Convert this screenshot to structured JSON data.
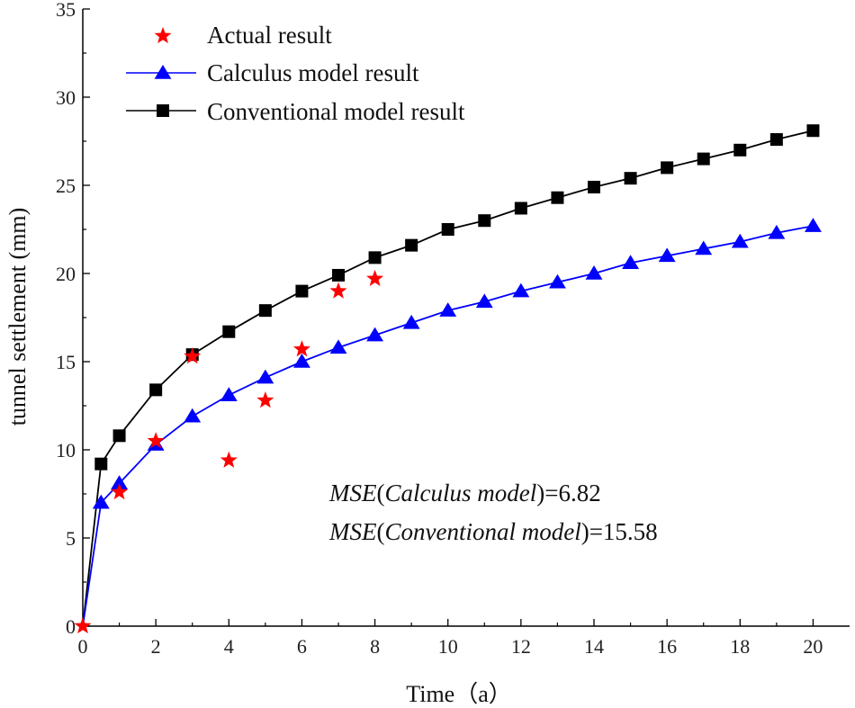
{
  "chart_data": {
    "type": "scatter",
    "xlabel": "Time（a）",
    "ylabel": "tunnel settlement (mm)",
    "xlim": [
      0,
      21
    ],
    "ylim": [
      0,
      35
    ],
    "xticks": [
      0,
      2,
      4,
      6,
      8,
      10,
      12,
      14,
      16,
      18,
      20
    ],
    "yticks": [
      0,
      5,
      10,
      15,
      20,
      25,
      30,
      35
    ],
    "xtick_labels": [
      "0",
      "2",
      "4",
      "6",
      "8",
      "10",
      "12",
      "14",
      "16",
      "18",
      "20"
    ],
    "ytick_labels": [
      "0",
      "5",
      "10",
      "15",
      "20",
      "25",
      "30",
      "35"
    ],
    "grid": false,
    "legend_position": "top-left",
    "series": [
      {
        "name": "Actual result",
        "kind": "scatter",
        "marker": "star",
        "color": "#ff0000",
        "x": [
          0,
          1,
          2,
          3,
          4,
          5,
          6,
          7,
          8
        ],
        "y": [
          0,
          7.6,
          10.5,
          15.3,
          9.4,
          12.8,
          15.7,
          19.0,
          19.7
        ]
      },
      {
        "name": "Calculus model result",
        "kind": "line",
        "marker": "triangle",
        "color": "#0000ff",
        "x": [
          0,
          0.5,
          1,
          2,
          3,
          4,
          5,
          6,
          7,
          8,
          9,
          10,
          11,
          12,
          13,
          14,
          15,
          16,
          17,
          18,
          19,
          20
        ],
        "y": [
          0,
          7.0,
          8.1,
          10.3,
          11.9,
          13.1,
          14.1,
          15.0,
          15.8,
          16.5,
          17.2,
          17.9,
          18.4,
          19.0,
          19.5,
          20.0,
          20.6,
          21.0,
          21.4,
          21.8,
          22.3,
          22.7
        ]
      },
      {
        "name": "Conventional model result",
        "kind": "line",
        "marker": "square",
        "color": "#000000",
        "x": [
          0,
          0.5,
          1,
          2,
          3,
          4,
          5,
          6,
          7,
          8,
          9,
          10,
          11,
          12,
          13,
          14,
          15,
          16,
          17,
          18,
          19,
          20
        ],
        "y": [
          0,
          9.2,
          10.8,
          13.4,
          15.4,
          16.7,
          17.9,
          19.0,
          19.9,
          20.9,
          21.6,
          22.5,
          23.0,
          23.7,
          24.3,
          24.9,
          25.4,
          26.0,
          26.5,
          27.0,
          27.6,
          28.1
        ]
      }
    ],
    "annotations": [
      {
        "label": "MSE",
        "model": "Calculus model",
        "value": "=6.82"
      },
      {
        "label": "MSE",
        "model": "Conventional model",
        "value": "=15.58"
      }
    ]
  }
}
